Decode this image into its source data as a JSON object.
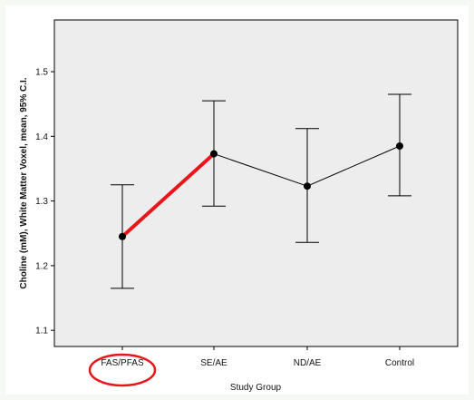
{
  "chart_data": {
    "type": "line",
    "title": "",
    "xlabel": "Study Group",
    "ylabel": "Choline (mM), White Matter Voxel, mean, 95% C.I.",
    "categories": [
      "FAS/PFAS",
      "SE/AE",
      "ND/AE",
      "Control"
    ],
    "series": [
      {
        "mean": [
          1.245,
          1.373,
          1.323,
          1.385
        ],
        "ci_lower": [
          1.165,
          1.292,
          1.236,
          1.308
        ],
        "ci_upper": [
          1.325,
          1.455,
          1.412,
          1.465
        ]
      }
    ],
    "ylim": [
      1.075,
      1.58
    ],
    "yticks": [
      1.1,
      1.2,
      1.3,
      1.4,
      1.5
    ],
    "ytick_labels": [
      "1.1",
      "1.2",
      "1.3",
      "1.4",
      "1.5"
    ],
    "grid": false,
    "background": "#ededed",
    "highlight": {
      "segment": [
        "FAS/PFAS",
        "SE/AE"
      ],
      "circled_category": "FAS/PFAS",
      "color": "#e8161a"
    }
  }
}
